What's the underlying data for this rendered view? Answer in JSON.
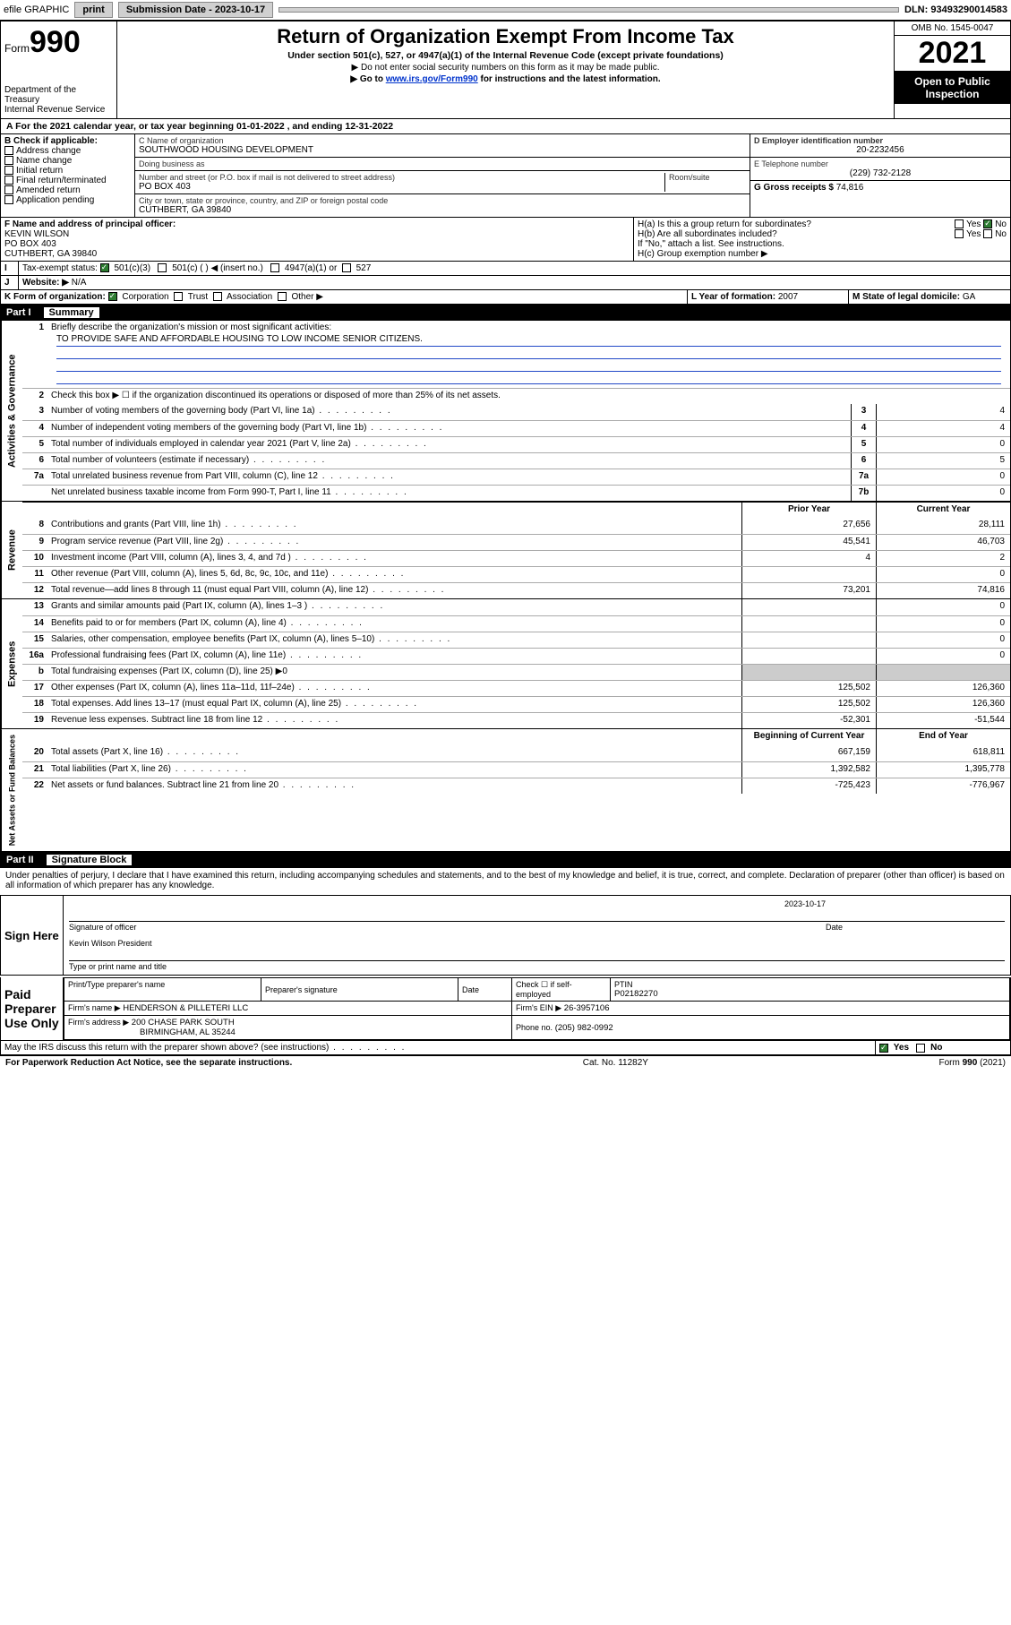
{
  "topbar": {
    "efile": "efile GRAPHIC",
    "print": "print",
    "sub_label": "Submission Date - 2023-10-17",
    "dln": "DLN: 93493290014583"
  },
  "header": {
    "form_prefix": "Form",
    "form_no": "990",
    "dept": "Department of the Treasury",
    "irs": "Internal Revenue Service",
    "title": "Return of Organization Exempt From Income Tax",
    "subtitle": "Under section 501(c), 527, or 4947(a)(1) of the Internal Revenue Code (except private foundations)",
    "note1": "▶ Do not enter social security numbers on this form as it may be made public.",
    "note2_pre": "▶ Go to ",
    "note2_link": "www.irs.gov/Form990",
    "note2_post": " for instructions and the latest information.",
    "omb": "OMB No. 1545-0047",
    "year": "2021",
    "open": "Open to Public Inspection"
  },
  "A": {
    "text": "For the 2021 calendar year, or tax year beginning 01-01-2022   , and ending 12-31-2022"
  },
  "B": {
    "label": "B Check if applicable:",
    "items": [
      "Address change",
      "Name change",
      "Initial return",
      "Final return/terminated",
      "Amended return",
      "Application pending"
    ]
  },
  "C": {
    "name_label": "C Name of organization",
    "name": "SOUTHWOOD HOUSING DEVELOPMENT",
    "dba_label": "Doing business as",
    "dba": "",
    "street_label": "Number and street (or P.O. box if mail is not delivered to street address)",
    "street": "PO BOX 403",
    "room_label": "Room/suite",
    "room": "",
    "city_label": "City or town, state or province, country, and ZIP or foreign postal code",
    "city": "CUTHBERT, GA  39840"
  },
  "D": {
    "label": "D Employer identification number",
    "value": "20-2232456"
  },
  "E": {
    "label": "E Telephone number",
    "value": "(229) 732-2128"
  },
  "G": {
    "label": "G Gross receipts $",
    "value": "74,816"
  },
  "F": {
    "label": "F Name and address of principal officer:",
    "name": "KEVIN WILSON",
    "addr1": "PO BOX 403",
    "addr2": "CUTHBERT, GA  39840"
  },
  "H": {
    "a": "H(a)  Is this a group return for subordinates?",
    "a_yes": "Yes",
    "a_no": "No",
    "b": "H(b)  Are all subordinates included?",
    "b_yes": "Yes",
    "b_no": "No",
    "b_note": "If \"No,\" attach a list. See instructions.",
    "c": "H(c)  Group exemption number ▶"
  },
  "I": {
    "label": "Tax-exempt status:",
    "opt1": "501(c)(3)",
    "opt2": "501(c) (   ) ◀ (insert no.)",
    "opt3": "4947(a)(1) or",
    "opt4": "527"
  },
  "J": {
    "label": "Website: ▶",
    "value": "N/A"
  },
  "K": {
    "label": "K Form of organization:",
    "opts": [
      "Corporation",
      "Trust",
      "Association",
      "Other ▶"
    ]
  },
  "L": {
    "label": "L Year of formation:",
    "value": "2007"
  },
  "M": {
    "label": "M State of legal domicile:",
    "value": "GA"
  },
  "part1": {
    "title": "Part I",
    "name": "Summary",
    "l1": "Briefly describe the organization's mission or most significant activities:",
    "mission": "TO PROVIDE SAFE AND AFFORDABLE HOUSING TO LOW INCOME SENIOR CITIZENS.",
    "l2": "Check this box ▶ ☐  if the organization discontinued its operations or disposed of more than 25% of its net assets.",
    "rows_gov": [
      {
        "n": "3",
        "d": "Number of voting members of the governing body (Part VI, line 1a)",
        "bn": "3",
        "v": "4"
      },
      {
        "n": "4",
        "d": "Number of independent voting members of the governing body (Part VI, line 1b)",
        "bn": "4",
        "v": "4"
      },
      {
        "n": "5",
        "d": "Total number of individuals employed in calendar year 2021 (Part V, line 2a)",
        "bn": "5",
        "v": "0"
      },
      {
        "n": "6",
        "d": "Total number of volunteers (estimate if necessary)",
        "bn": "6",
        "v": "5"
      },
      {
        "n": "7a",
        "d": "Total unrelated business revenue from Part VIII, column (C), line 12",
        "bn": "7a",
        "v": "0"
      },
      {
        "n": "",
        "d": "Net unrelated business taxable income from Form 990-T, Part I, line 11",
        "bn": "7b",
        "v": "0"
      }
    ],
    "hdr_prior": "Prior Year",
    "hdr_curr": "Current Year",
    "rows_rev": [
      {
        "n": "8",
        "d": "Contributions and grants (Part VIII, line 1h)",
        "p": "27,656",
        "c": "28,111"
      },
      {
        "n": "9",
        "d": "Program service revenue (Part VIII, line 2g)",
        "p": "45,541",
        "c": "46,703"
      },
      {
        "n": "10",
        "d": "Investment income (Part VIII, column (A), lines 3, 4, and 7d )",
        "p": "4",
        "c": "2"
      },
      {
        "n": "11",
        "d": "Other revenue (Part VIII, column (A), lines 5, 6d, 8c, 9c, 10c, and 11e)",
        "p": "",
        "c": "0"
      },
      {
        "n": "12",
        "d": "Total revenue—add lines 8 through 11 (must equal Part VIII, column (A), line 12)",
        "p": "73,201",
        "c": "74,816"
      }
    ],
    "rows_exp": [
      {
        "n": "13",
        "d": "Grants and similar amounts paid (Part IX, column (A), lines 1–3 )",
        "p": "",
        "c": "0"
      },
      {
        "n": "14",
        "d": "Benefits paid to or for members (Part IX, column (A), line 4)",
        "p": "",
        "c": "0"
      },
      {
        "n": "15",
        "d": "Salaries, other compensation, employee benefits (Part IX, column (A), lines 5–10)",
        "p": "",
        "c": "0"
      },
      {
        "n": "16a",
        "d": "Professional fundraising fees (Part IX, column (A), line 11e)",
        "p": "",
        "c": "0"
      },
      {
        "n": "b",
        "d": "Total fundraising expenses (Part IX, column (D), line 25) ▶0",
        "p": "shade",
        "c": "shade"
      },
      {
        "n": "17",
        "d": "Other expenses (Part IX, column (A), lines 11a–11d, 11f–24e)",
        "p": "125,502",
        "c": "126,360"
      },
      {
        "n": "18",
        "d": "Total expenses. Add lines 13–17 (must equal Part IX, column (A), line 25)",
        "p": "125,502",
        "c": "126,360"
      },
      {
        "n": "19",
        "d": "Revenue less expenses. Subtract line 18 from line 12",
        "p": "-52,301",
        "c": "-51,544"
      }
    ],
    "hdr_beg": "Beginning of Current Year",
    "hdr_end": "End of Year",
    "rows_net": [
      {
        "n": "20",
        "d": "Total assets (Part X, line 16)",
        "p": "667,159",
        "c": "618,811"
      },
      {
        "n": "21",
        "d": "Total liabilities (Part X, line 26)",
        "p": "1,392,582",
        "c": "1,395,778"
      },
      {
        "n": "22",
        "d": "Net assets or fund balances. Subtract line 21 from line 20",
        "p": "-725,423",
        "c": "-776,967"
      }
    ]
  },
  "part2": {
    "title": "Part II",
    "name": "Signature Block",
    "intro": "Under penalties of perjury, I declare that I have examined this return, including accompanying schedules and statements, and to the best of my knowledge and belief, it is true, correct, and complete. Declaration of preparer (other than officer) is based on all information of which preparer has any knowledge.",
    "sign_here": "Sign Here",
    "sig_officer": "Signature of officer",
    "date_label": "Date",
    "date": "2023-10-17",
    "officer_name": "Kevin Wilson  President",
    "type_name": "Type or print name and title",
    "paid": "Paid Preparer Use Only",
    "pp_name_label": "Print/Type preparer's name",
    "pp_sig_label": "Preparer's signature",
    "pp_date_label": "Date",
    "pp_check": "Check ☐ if self-employed",
    "ptin_label": "PTIN",
    "ptin": "P02182270",
    "firm_name_label": "Firm's name   ▶",
    "firm_name": "HENDERSON & PILLETERI LLC",
    "firm_ein_label": "Firm's EIN ▶",
    "firm_ein": "26-3957106",
    "firm_addr_label": "Firm's address ▶",
    "firm_addr1": "200 CHASE PARK SOUTH",
    "firm_addr2": "BIRMINGHAM, AL  35244",
    "phone_label": "Phone no.",
    "phone": "(205) 982-0992",
    "discuss": "May the IRS discuss this return with the preparer shown above? (see instructions)",
    "yes": "Yes",
    "no": "No"
  },
  "footer": {
    "left": "For Paperwork Reduction Act Notice, see the separate instructions.",
    "mid": "Cat. No. 11282Y",
    "right": "Form 990 (2021)"
  }
}
